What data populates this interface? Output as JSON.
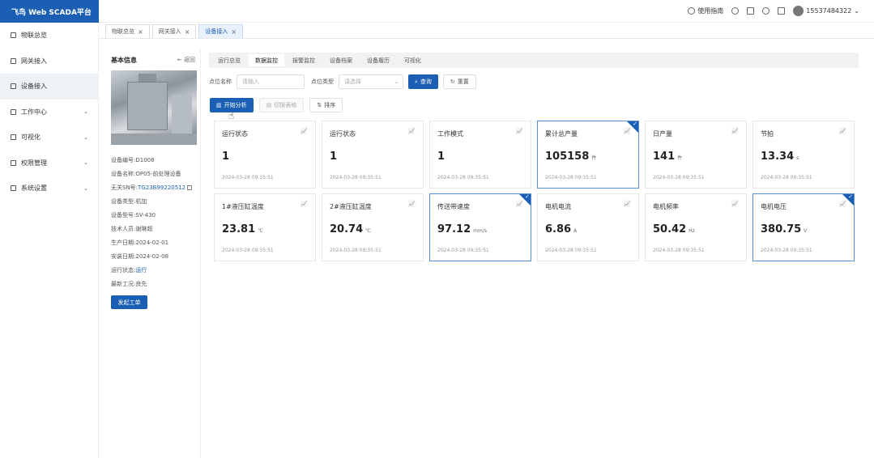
{
  "app": {
    "title": "飞鸟 Web SCADA平台"
  },
  "topbar": {
    "help_label": "使用指南",
    "username": "15537484322"
  },
  "sidebar": {
    "items": [
      {
        "label": "物联总览",
        "icon": "monitor-icon",
        "has_chevron": false,
        "active": false
      },
      {
        "label": "网关接入",
        "icon": "bar-icon",
        "has_chevron": false,
        "active": false
      },
      {
        "label": "设备接入",
        "icon": "device-icon",
        "has_chevron": false,
        "active": true
      },
      {
        "label": "工作中心",
        "icon": "work-icon",
        "has_chevron": true,
        "active": false
      },
      {
        "label": "可视化",
        "icon": "chart-icon",
        "has_chevron": true,
        "active": false
      },
      {
        "label": "权限管理",
        "icon": "shield-icon",
        "has_chevron": true,
        "active": false
      },
      {
        "label": "系统设置",
        "icon": "gear-icon",
        "has_chevron": true,
        "active": false
      }
    ]
  },
  "page_tabs": [
    {
      "label": "物联总览",
      "active": false
    },
    {
      "label": "网关接入",
      "active": false
    },
    {
      "label": "设备接入",
      "active": true
    }
  ],
  "info": {
    "title": "基本信息",
    "back_label": "← 返回",
    "rows": [
      {
        "label": "设备编号:",
        "value": "D1008",
        "link": false
      },
      {
        "label": "设备名称:",
        "value": "OP05-前处理设备",
        "link": false
      },
      {
        "label": "无关SN号:",
        "value": "TG23B99220512",
        "link": true,
        "copy": true
      },
      {
        "label": "设备类型:",
        "value": "机加",
        "link": false
      },
      {
        "label": "设备型号:",
        "value": "SV-430",
        "link": false
      },
      {
        "label": "技术人员:",
        "value": "谢琳超",
        "link": false
      },
      {
        "label": "生产日期:",
        "value": "2024-02-01",
        "link": false
      },
      {
        "label": "安装日期:",
        "value": "2024-02-08",
        "link": false
      },
      {
        "label": "运行状态:",
        "value": "运行",
        "link": true
      },
      {
        "label": "最新工况:",
        "value": "良先",
        "link": false
      }
    ],
    "order_button": "发起工单"
  },
  "subtabs": [
    {
      "label": "运行总览",
      "active": false
    },
    {
      "label": "数据监控",
      "active": true
    },
    {
      "label": "报警监控",
      "active": false
    },
    {
      "label": "设备档案",
      "active": false
    },
    {
      "label": "设备履历",
      "active": false
    },
    {
      "label": "可视化",
      "active": false
    }
  ],
  "filters": {
    "name_label": "点位名称",
    "name_placeholder": "请输入",
    "type_label": "点位类型",
    "type_placeholder": "请选择",
    "search_button": "查询",
    "reset_button": "重置"
  },
  "actions": {
    "analyze_button": "开始分析",
    "switch_button": "切换表格",
    "sort_button": "排序"
  },
  "cards": [
    {
      "title": "运行状态",
      "value": "1",
      "unit": "",
      "time": "2024-03-28 09:35:51",
      "selected": false
    },
    {
      "title": "运行状态",
      "value": "1",
      "unit": "",
      "time": "2024-03-28 09:35:51",
      "selected": false
    },
    {
      "title": "工作模式",
      "value": "1",
      "unit": "",
      "time": "2024-03-28 09:35:51",
      "selected": false
    },
    {
      "title": "累计总产量",
      "value": "105158",
      "unit": "件",
      "time": "2024-03-28 09:35:51",
      "selected": true
    },
    {
      "title": "日产量",
      "value": "141",
      "unit": "件",
      "time": "2024-03-28 09:35:51",
      "selected": false
    },
    {
      "title": "节拍",
      "value": "13.34",
      "unit": "s",
      "time": "2024-03-28 09:35:51",
      "selected": false
    },
    {
      "title": "1#液压缸温度",
      "value": "23.81",
      "unit": "℃",
      "time": "2024-03-28 09:35:51",
      "selected": false
    },
    {
      "title": "2#液压缸温度",
      "value": "20.74",
      "unit": "℃",
      "time": "2024-03-28 09:35:51",
      "selected": false
    },
    {
      "title": "传送带速度",
      "value": "97.12",
      "unit": "mm/s",
      "time": "2024-03-28 09:35:51",
      "selected": true
    },
    {
      "title": "电机电流",
      "value": "6.86",
      "unit": "A",
      "time": "2024-03-28 09:35:51",
      "selected": false
    },
    {
      "title": "电机频率",
      "value": "50.42",
      "unit": "Hz",
      "time": "2024-03-28 09:35:51",
      "selected": false
    },
    {
      "title": "电机电压",
      "value": "380.75",
      "unit": "V",
      "time": "2024-03-28 09:35:51",
      "selected": true
    }
  ]
}
